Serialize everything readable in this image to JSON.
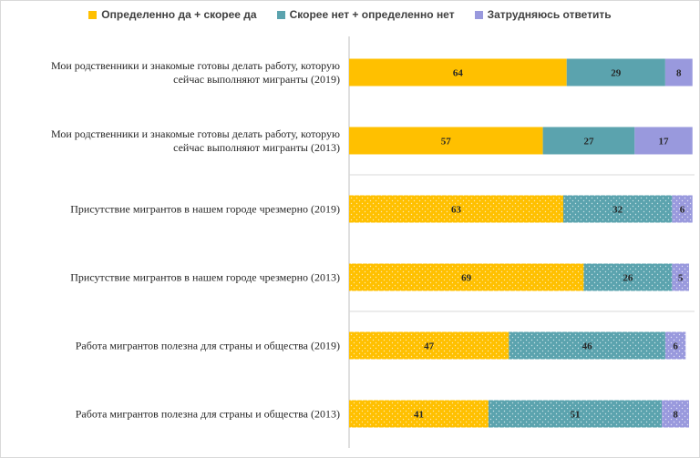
{
  "chart_data": {
    "type": "bar",
    "orientation": "horizontal",
    "stacked": true,
    "legend_position": "top",
    "xlim": [
      0,
      100
    ],
    "colors": {
      "yes": "#FFC000",
      "no": "#5BA3AE",
      "unsure": "#9999DD"
    },
    "series": [
      {
        "key": "yes",
        "name": "Определенно да + скорее да",
        "values": [
          64,
          57,
          63,
          69,
          47,
          41
        ]
      },
      {
        "key": "no",
        "name": "Скорее нет + определенно нет",
        "values": [
          29,
          27,
          32,
          26,
          46,
          51
        ]
      },
      {
        "key": "unsure",
        "name": "Затрудняюсь ответить",
        "values": [
          8,
          17,
          6,
          5,
          6,
          8
        ]
      }
    ],
    "categories": [
      [
        "Мои родственники и знакомые готовы делать работу, которую",
        "сейчас выполняют мигранты (2019)"
      ],
      [
        "Мои родственники и знакомые готовы делать работу, которую",
        "сейчас выполняют мигранты (2013)"
      ],
      [
        "Присутствие мигрантов в нашем городе чрезмерно (2019)"
      ],
      [
        "Присутствие мигрантов в нашем городе чрезмерно (2013)"
      ],
      [
        "Работа мигрантов полезна для страны и общества (2019)"
      ],
      [
        "Работа мигрантов полезна для страны и общества (2013)"
      ]
    ],
    "patterns": [
      "solid",
      "solid",
      "dotted",
      "dotted",
      "dotted",
      "dotted"
    ]
  }
}
